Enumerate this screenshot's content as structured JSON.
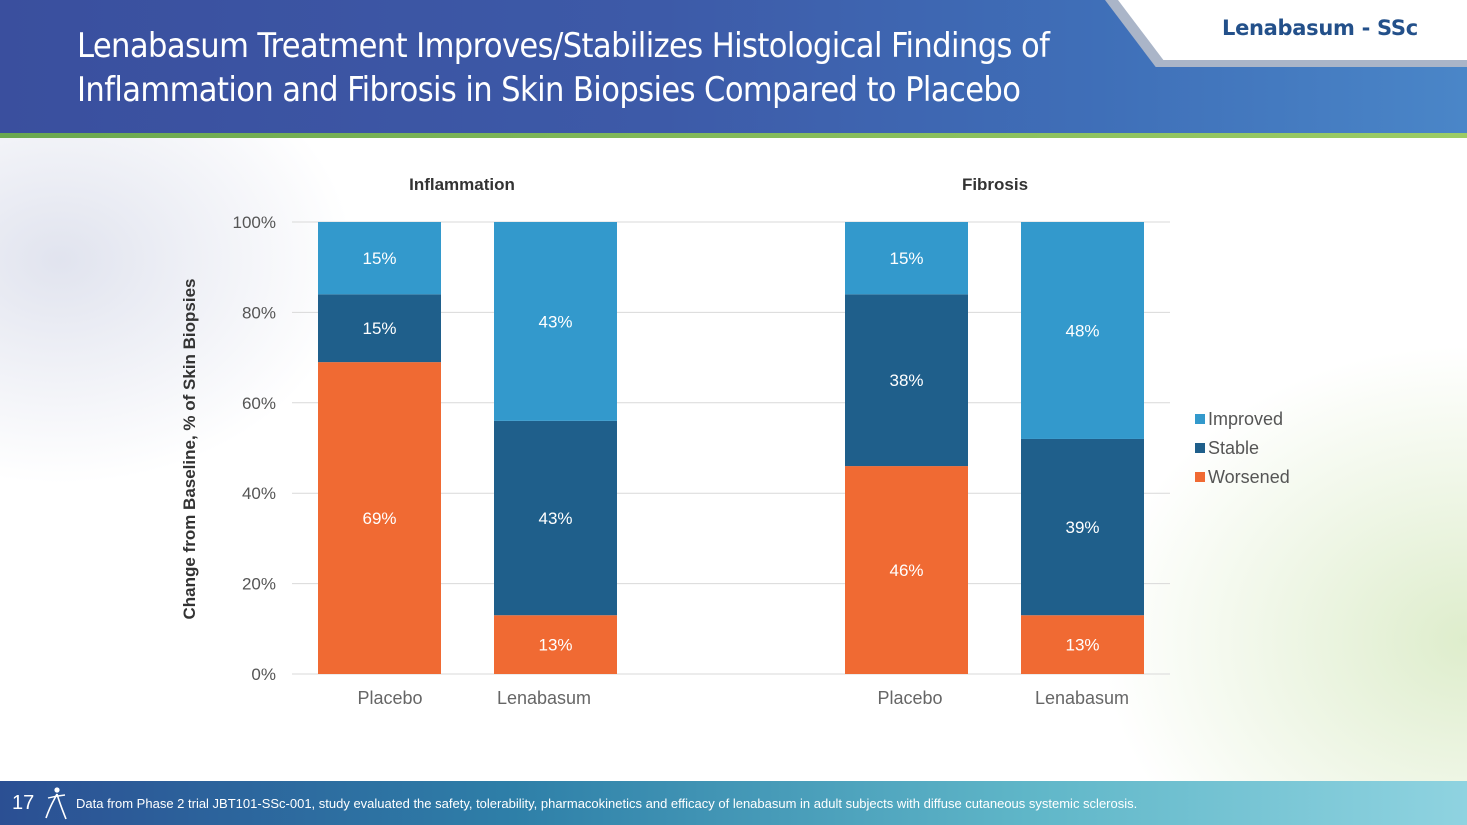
{
  "slide": {
    "title_line1": "Lenabasum Treatment Improves/Stabilizes Histological Findings of",
    "title_line2": "Inflammation and Fibrosis in Skin Biopsies Compared to Placebo",
    "brand_label": "Lenabasum - SSc",
    "page_number": "17",
    "footnote": "Data from Phase 2 trial JBT101-SSc-001, study evaluated the safety, tolerability, pharmacokinetics and efficacy of lenabasum in adult subjects with diffuse cutaneous systemic sclerosis."
  },
  "colors": {
    "improved": "#3399cc",
    "stable": "#1f5f8b",
    "worsened": "#f06a33",
    "header": "#3a4f9e",
    "brand_text": "#23508a"
  },
  "chart_data": {
    "type": "bar",
    "stacked": true,
    "ylabel": "Change from Baseline, % of Skin Biopsies",
    "ylim": [
      0,
      100
    ],
    "yticks": [
      "0%",
      "20%",
      "40%",
      "60%",
      "80%",
      "100%"
    ],
    "grid": true,
    "legend_position": "right",
    "legend": [
      "Improved",
      "Stable",
      "Worsened"
    ],
    "panels": [
      {
        "title": "Inflammation",
        "categories": [
          "Placebo",
          "Lenabasum"
        ],
        "series": [
          {
            "name": "Worsened",
            "values": [
              69,
              13
            ],
            "labels": [
              "69%",
              "13%"
            ]
          },
          {
            "name": "Stable",
            "values": [
              15,
              43
            ],
            "labels": [
              "15%",
              "43%"
            ]
          },
          {
            "name": "Improved",
            "values": [
              15,
              43
            ],
            "labels": [
              "15%",
              "43%"
            ]
          }
        ]
      },
      {
        "title": "Fibrosis",
        "categories": [
          "Placebo",
          "Lenabasum"
        ],
        "series": [
          {
            "name": "Worsened",
            "values": [
              46,
              13
            ],
            "labels": [
              "46%",
              "13%"
            ]
          },
          {
            "name": "Stable",
            "values": [
              38,
              39
            ],
            "labels": [
              "38%",
              "39%"
            ]
          },
          {
            "name": "Improved",
            "values": [
              15,
              48
            ],
            "labels": [
              "15%",
              "48%"
            ]
          }
        ]
      }
    ]
  }
}
